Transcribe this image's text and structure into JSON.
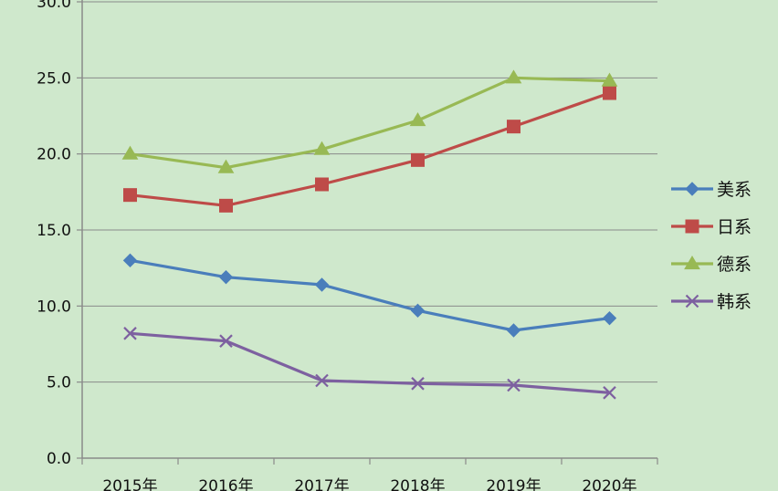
{
  "chart_data": {
    "type": "line",
    "categories": [
      "2015年",
      "2016年",
      "2017年",
      "2018年",
      "2019年",
      "2020年"
    ],
    "ylim": [
      0,
      30
    ],
    "yticks": [
      "0.0",
      "5.0",
      "10.0",
      "15.0",
      "20.0",
      "25.0",
      "30.0"
    ],
    "grid": true,
    "legend_position": "right",
    "series": [
      {
        "name": "美系",
        "color": "#4a7ebb",
        "marker": "diamond",
        "values": [
          13.0,
          11.9,
          11.4,
          9.7,
          8.4,
          9.2
        ]
      },
      {
        "name": "日系",
        "color": "#be4b48",
        "marker": "square",
        "values": [
          17.3,
          16.6,
          18.0,
          19.6,
          21.8,
          24.0
        ]
      },
      {
        "name": "德系",
        "color": "#98b954",
        "marker": "triangle",
        "values": [
          20.0,
          19.1,
          20.3,
          22.2,
          25.0,
          24.8
        ]
      },
      {
        "name": "韩系",
        "color": "#7d60a0",
        "marker": "x",
        "values": [
          8.2,
          7.7,
          5.1,
          4.9,
          4.8,
          4.3
        ]
      }
    ]
  }
}
